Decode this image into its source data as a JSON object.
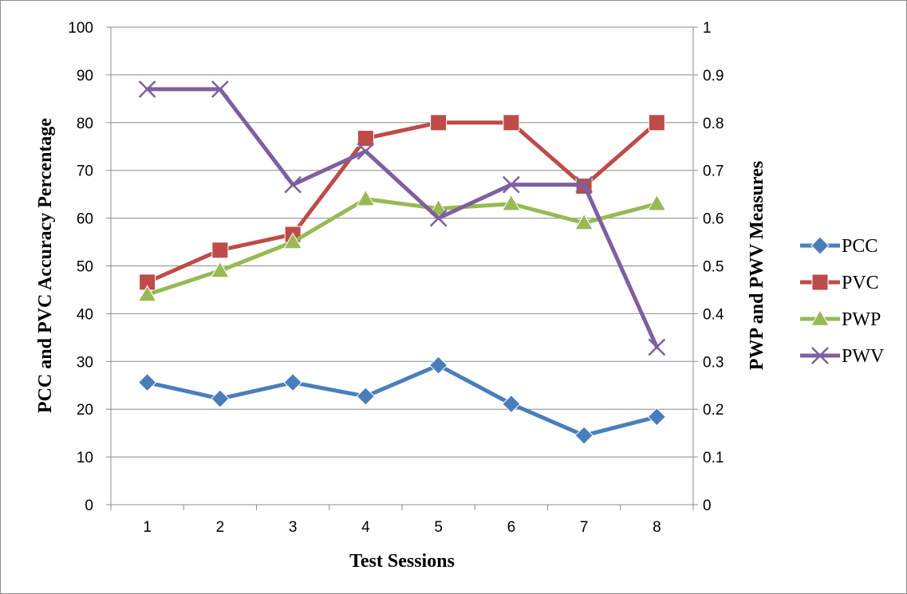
{
  "chart_data": {
    "type": "line",
    "categories": [
      "1",
      "2",
      "3",
      "4",
      "5",
      "6",
      "7",
      "8"
    ],
    "xlabel": "Test Sessions",
    "ylabel": "PCC and PVC Accuracy  Percentage",
    "y2label": "PWP and PWV Measures",
    "ylim": [
      0,
      100
    ],
    "y2lim": [
      0,
      1
    ],
    "yticks": [
      "0",
      "10",
      "20",
      "30",
      "40",
      "50",
      "60",
      "70",
      "80",
      "90",
      "100"
    ],
    "y2ticks": [
      "0",
      "0.1",
      "0.2",
      "0.3",
      "0.4",
      "0.5",
      "0.6",
      "0.7",
      "0.8",
      "0.9",
      "1"
    ],
    "grid": "horizontal",
    "legend_position": "right",
    "series": [
      {
        "name": "PCC",
        "axis": "left",
        "color": "#4a7ebb",
        "marker": "diamond",
        "values": [
          25.6,
          22.2,
          25.6,
          22.7,
          29.2,
          21.1,
          14.5,
          18.4
        ]
      },
      {
        "name": "PVC",
        "axis": "left",
        "color": "#be4b48",
        "marker": "square",
        "values": [
          46.6,
          53.3,
          56.6,
          76.7,
          80,
          80,
          66.7,
          80
        ]
      },
      {
        "name": "PWP",
        "axis": "right",
        "color": "#98b954",
        "marker": "triangle",
        "values": [
          0.44,
          0.49,
          0.55,
          0.64,
          0.62,
          0.63,
          0.59,
          0.63
        ]
      },
      {
        "name": "PWV",
        "axis": "right",
        "color": "#7d60a0",
        "marker": "x",
        "values": [
          0.87,
          0.87,
          0.67,
          0.74,
          0.6,
          0.67,
          0.67,
          0.33
        ]
      }
    ]
  }
}
